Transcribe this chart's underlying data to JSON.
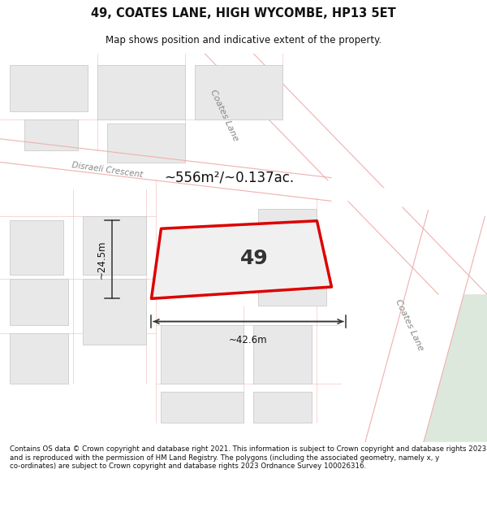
{
  "title_line1": "49, COATES LANE, HIGH WYCOMBE, HP13 5ET",
  "title_line2": "Map shows position and indicative extent of the property.",
  "footer_text": "Contains OS data © Crown copyright and database right 2021. This information is subject to Crown copyright and database rights 2023 and is reproduced with the permission of HM Land Registry. The polygons (including the associated geometry, namely x, y co-ordinates) are subject to Crown copyright and database rights 2023 Ordnance Survey 100026316.",
  "area_text": "~556m²/~0.137ac.",
  "property_number": "49",
  "dim_width": "~42.6m",
  "dim_height": "~24.5m",
  "map_bg": "#f5f5f5",
  "road_bg": "#ffffff",
  "building_fill": "#e8e8e8",
  "building_edge": "#cccccc",
  "property_fill": "#f0f0f0",
  "property_edge": "#dd0000",
  "green_fill": "#dce8dc",
  "pink_line": "#f0b0b0",
  "street_color": "#aaaaaa",
  "street_label_coates_top": "Coates Lane",
  "street_label_disraeli": "Disraeli Crescent",
  "street_label_coates_right": "Coates Lane"
}
